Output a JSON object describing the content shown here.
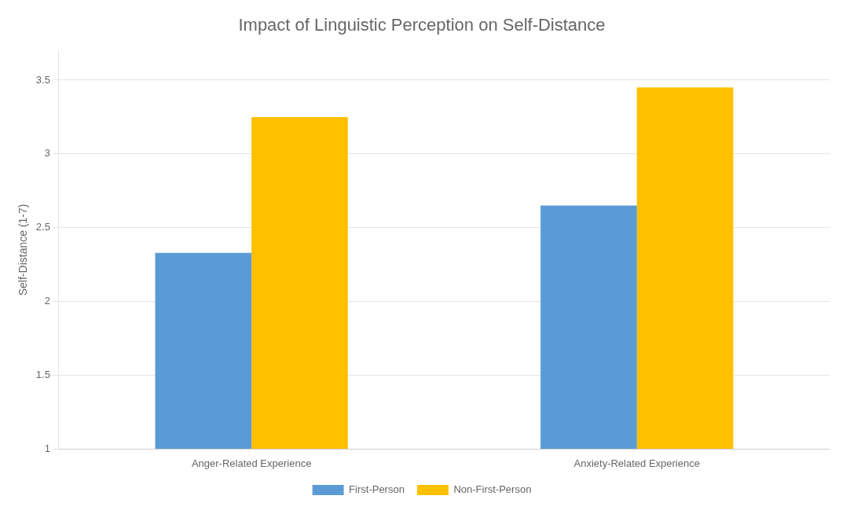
{
  "chart_data": {
    "type": "bar",
    "title": "Impact of Linguistic Perception on Self-Distance",
    "categories": [
      "Anger-Related Experience",
      "Anxiety-Related Experience"
    ],
    "series": [
      {
        "name": "First-Person",
        "color": "#5B9BD5",
        "values": [
          2.33,
          2.65
        ]
      },
      {
        "name": "Non-First-Person",
        "color": "#FFC000",
        "values": [
          3.25,
          3.45
        ]
      }
    ],
    "ylabel": "Self-Distance (1-7)",
    "ylim": [
      1,
      3.7
    ],
    "yticks": [
      1,
      1.5,
      2,
      2.5,
      3,
      3.5
    ],
    "grid": true,
    "legend": "bottom"
  }
}
